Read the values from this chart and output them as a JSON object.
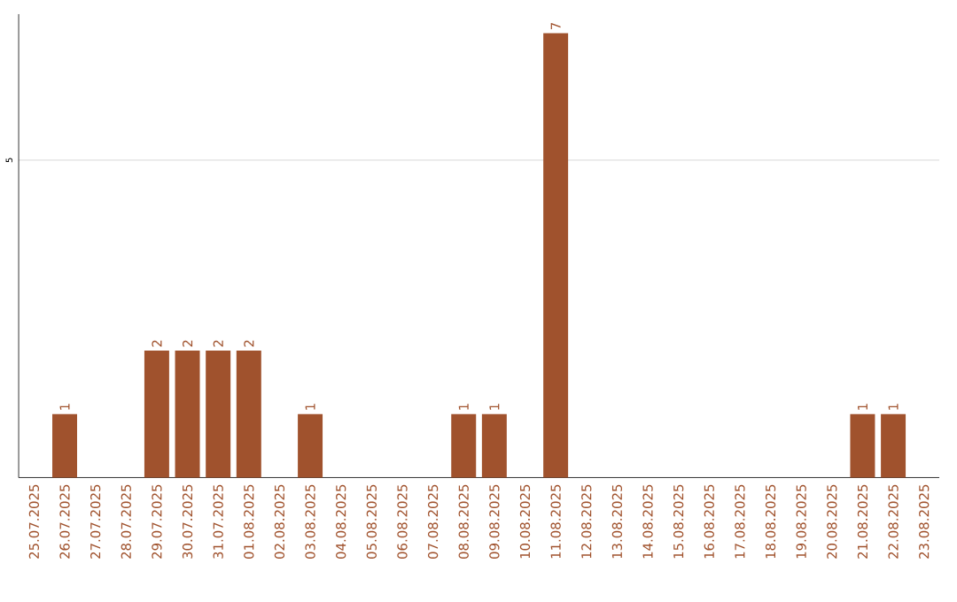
{
  "chart_data": {
    "type": "bar",
    "categories": [
      "25.07.2025",
      "26.07.2025",
      "27.07.2025",
      "28.07.2025",
      "29.07.2025",
      "30.07.2025",
      "31.07.2025",
      "01.08.2025",
      "02.08.2025",
      "03.08.2025",
      "04.08.2025",
      "05.08.2025",
      "06.08.2025",
      "07.08.2025",
      "08.08.2025",
      "09.08.2025",
      "10.08.2025",
      "11.08.2025",
      "12.08.2025",
      "13.08.2025",
      "14.08.2025",
      "15.08.2025",
      "16.08.2025",
      "17.08.2025",
      "18.08.2025",
      "19.08.2025",
      "20.08.2025",
      "21.08.2025",
      "22.08.2025",
      "23.08.2025"
    ],
    "values": [
      0,
      1,
      0,
      0,
      2,
      2,
      2,
      2,
      0,
      1,
      0,
      0,
      0,
      0,
      1,
      1,
      0,
      7,
      0,
      0,
      0,
      0,
      0,
      0,
      0,
      0,
      0,
      1,
      1,
      0
    ],
    "value_labels": [
      null,
      "1",
      null,
      null,
      "2",
      "2",
      "2",
      "2",
      null,
      "1",
      null,
      null,
      null,
      null,
      "1",
      "1",
      null,
      "7",
      null,
      null,
      null,
      null,
      null,
      null,
      null,
      null,
      null,
      "1",
      "1",
      null
    ],
    "color": "#a0522d",
    "ylim": [
      0,
      7.3
    ],
    "yticks": [
      5
    ],
    "grid": "y"
  }
}
